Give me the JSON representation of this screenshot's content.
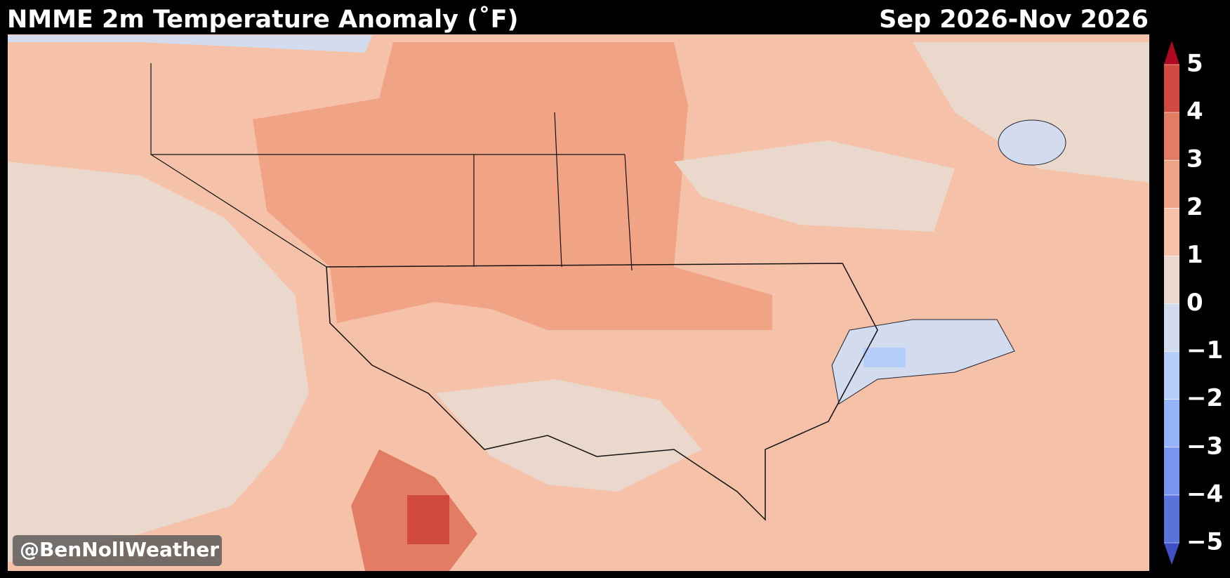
{
  "header": {
    "title": "NMME 2m Temperature Anomaly (˚F)",
    "period": "Sep 2026-Nov 2026"
  },
  "watermark": "@BenNollWeather",
  "colorbar": {
    "lim": [
      -5,
      5
    ],
    "ticks": [
      {
        "value": -5,
        "label": "−5"
      },
      {
        "value": -4,
        "label": "−4"
      },
      {
        "value": -3,
        "label": "−3"
      },
      {
        "value": -2,
        "label": "−2"
      },
      {
        "value": -1,
        "label": "−1"
      },
      0,
      1,
      2,
      3,
      4,
      5
    ],
    "colors": [
      "#5a72db",
      "#7795f0",
      "#95b3fb",
      "#b5cdfb",
      "#d2dcee",
      "#ead8cd",
      "#f5c2a9",
      "#f1a386",
      "#e27d63",
      "#d04a40"
    ],
    "extend_colors": [
      "#3f4fc4",
      "#b0081f"
    ]
  }
}
